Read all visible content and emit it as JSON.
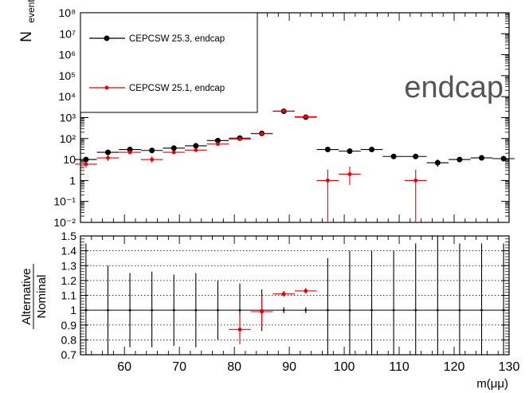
{
  "chart_data": [
    {
      "type": "scatter",
      "panel": "top",
      "ylabel_main": "N",
      "ylabel_sub": "events",
      "yscale": "log",
      "xlim": [
        52,
        130
      ],
      "ylim": [
        0.01,
        100000000
      ],
      "ytick_labels": [
        "10⁻²",
        "10⁻¹",
        "1",
        "10",
        "10²",
        "10³",
        "10⁴",
        "10⁵",
        "10⁶",
        "10⁷",
        "10⁸"
      ],
      "ytick_values": [
        0.01,
        0.1,
        1,
        10,
        100,
        1000,
        10000,
        100000,
        1000000,
        10000000,
        100000000
      ],
      "annotation": "endcap",
      "legend_position": "top-left",
      "series": [
        {
          "name": "CEPCSW 25.3, endcap",
          "color": "#000000",
          "x": [
            53,
            57,
            61,
            65,
            69,
            73,
            77,
            81,
            85,
            89,
            93,
            97,
            101,
            105,
            109,
            113,
            117,
            121,
            125,
            129
          ],
          "y": [
            10,
            22,
            30,
            27,
            35,
            45,
            80,
            105,
            175,
            2000,
            1050,
            30,
            25,
            30,
            14,
            14,
            7,
            10,
            12,
            11
          ],
          "ylow": [
            8,
            18,
            26,
            23,
            30,
            40,
            73,
            97,
            165,
            1930,
            1010,
            25,
            20,
            25,
            11,
            11,
            4.5,
            8,
            9.5,
            8.5
          ],
          "yhigh": [
            12.5,
            26,
            35,
            31,
            40,
            51,
            88,
            114,
            186,
            2070,
            1090,
            36,
            30,
            35,
            17.5,
            17.5,
            10,
            12.5,
            15,
            13.5
          ]
        },
        {
          "name": "CEPCSW 25.1, endcap",
          "color": "#e8000b",
          "x": [
            53,
            57,
            61,
            65,
            69,
            73,
            77,
            81,
            85,
            89,
            93,
            97,
            101,
            113
          ],
          "y": [
            6,
            12,
            22,
            10,
            22,
            28,
            55,
            95,
            170,
            2050,
            1100,
            1,
            2,
            1
          ],
          "ylow": [
            4,
            8.5,
            18,
            7,
            18,
            23,
            48,
            87,
            160,
            1980,
            1060,
            0.01,
            0.6,
            0.01
          ],
          "yhigh": [
            8.5,
            16,
            27,
            14,
            27,
            34,
            63,
            104,
            182,
            2120,
            1140,
            3.3,
            4.6,
            3.3
          ]
        }
      ]
    },
    {
      "type": "scatter",
      "panel": "bottom",
      "ylabel_num": "Alternative",
      "ylabel_den": "Nominal",
      "xlabel": "m(μμ)",
      "xlim": [
        52,
        130
      ],
      "ylim": [
        0.7,
        1.5
      ],
      "ytick_labels": [
        "0.7",
        "0.8",
        "0.9",
        "1",
        "1.1",
        "1.2",
        "1.3",
        "1.4",
        "1.5"
      ],
      "xtick_labels": [
        "60",
        "70",
        "80",
        "90",
        "100",
        "110",
        "120",
        "130"
      ],
      "grid": "horizontal dotted",
      "series": [
        {
          "name": "",
          "color": "#000000",
          "x": [
            53,
            57,
            61,
            65,
            69,
            73,
            77,
            81,
            85,
            89,
            93,
            97,
            101,
            105,
            109,
            113,
            117,
            121,
            125,
            129
          ],
          "y": [
            1,
            1,
            1,
            1,
            1,
            1,
            1,
            1,
            1,
            1,
            1,
            1,
            1,
            1,
            1,
            1,
            1,
            1,
            1,
            1
          ],
          "ylow": [
            0.7,
            0.7,
            0.75,
            0.75,
            0.76,
            0.75,
            0.8,
            0.82,
            0.86,
            0.98,
            0.98,
            0.7,
            0.7,
            0.7,
            0.7,
            0.7,
            0.7,
            0.7,
            0.7,
            0.7
          ],
          "yhigh": [
            1.45,
            1.3,
            1.25,
            1.26,
            1.24,
            1.25,
            1.2,
            1.18,
            1.14,
            1.02,
            1.02,
            1.35,
            1.4,
            1.4,
            1.4,
            1.45,
            1.5,
            1.45,
            1.45,
            1.45
          ]
        },
        {
          "name": "",
          "color": "#e8000b",
          "x": [
            81,
            85,
            89,
            93
          ],
          "y": [
            0.87,
            0.99,
            1.11,
            1.13
          ],
          "ylow": [
            0.77,
            0.89,
            1.09,
            1.11
          ],
          "yhigh": [
            0.97,
            1.09,
            1.13,
            1.15
          ]
        }
      ]
    }
  ]
}
